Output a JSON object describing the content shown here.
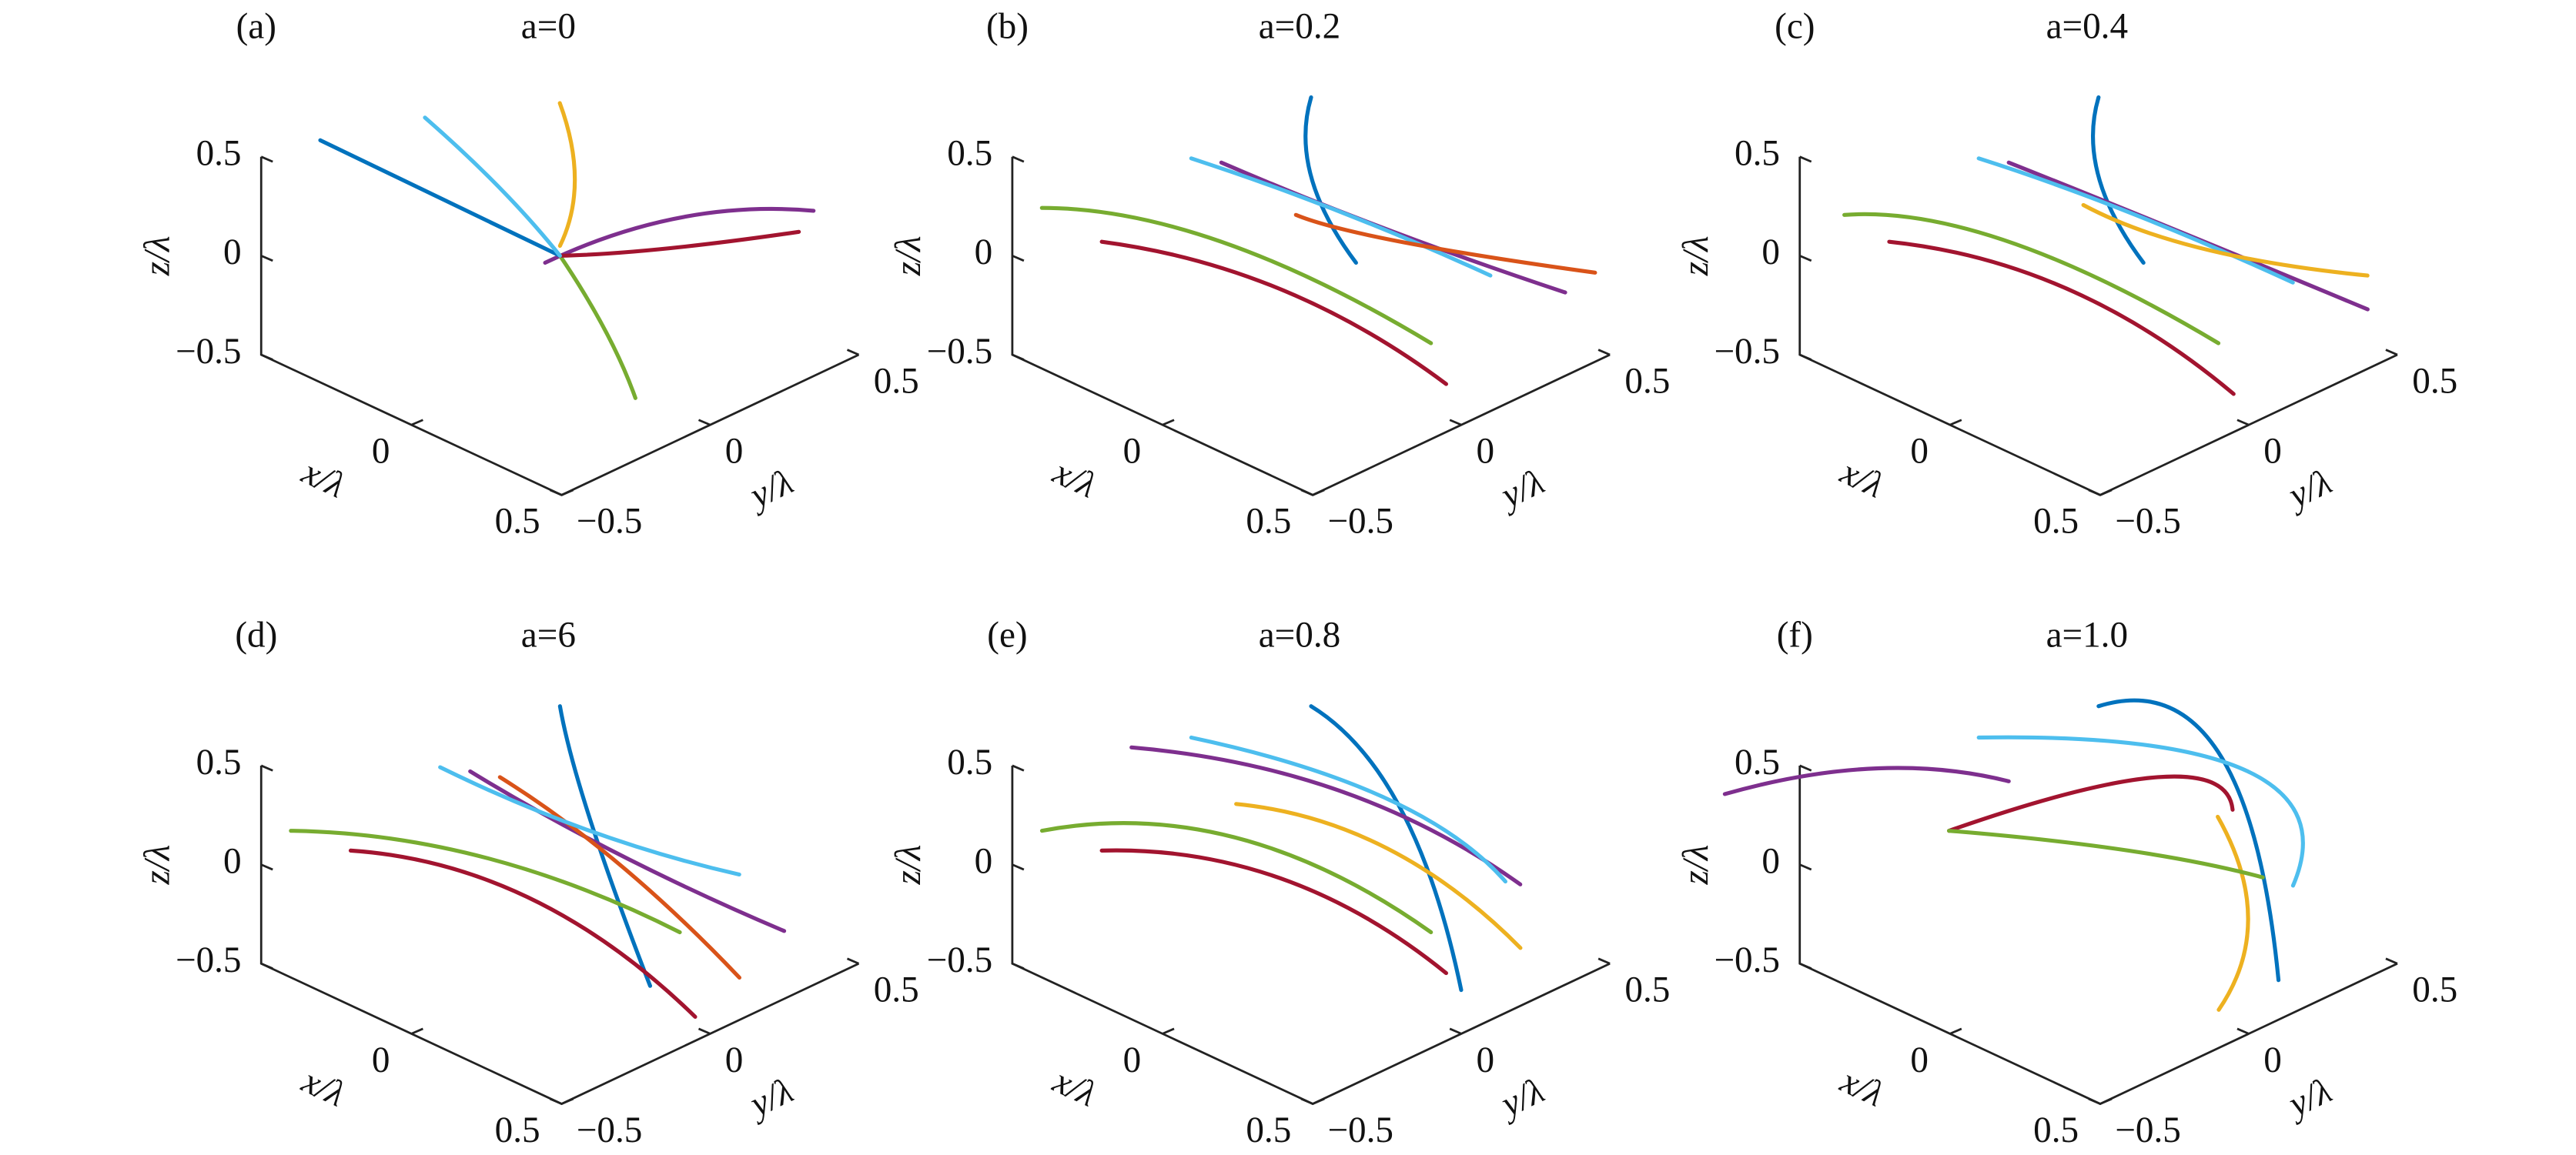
{
  "chart_data": [
    {
      "type": "line3d",
      "panel_label": "(a)",
      "title": "a=0",
      "xlabel": "x/λ",
      "ylabel": "y/λ",
      "zlabel": "z/λ",
      "xlim": [
        -0.5,
        0.5
      ],
      "ylim": [
        -0.5,
        0.5
      ],
      "zlim": [
        -0.5,
        0.5
      ],
      "xticks": [
        0,
        0.5
      ],
      "yticks": [
        {
          "value": -0.5,
          "label": "−0.5"
        },
        0,
        0.5
      ],
      "zticks": [
        {
          "value": -0.5,
          "label": "−0.5"
        },
        0,
        0.5
      ],
      "series": [
        {
          "color": "#7E2F8E",
          "x": [
            0,
            0.1,
            0.3
          ],
          "y": [
            -0.05,
            0.3,
            0.55
          ],
          "z": [
            0,
            0.05,
            0.05
          ]
        },
        {
          "color": "#0072BD",
          "x": [
            0,
            -0.3,
            -0.6
          ],
          "y": [
            0,
            -0.1,
            -0.2
          ],
          "z": [
            0,
            0.15,
            0.3
          ]
        },
        {
          "color": "#EDB120",
          "x": [
            0,
            0,
            -0.05
          ],
          "y": [
            0,
            0.05,
            0.05
          ],
          "z": [
            0.05,
            0.35,
            0.7
          ]
        },
        {
          "color": "#77AC30",
          "x": [
            0,
            0.2,
            0.35
          ],
          "y": [
            0,
            -0.05,
            -0.1
          ],
          "z": [
            0,
            -0.2,
            -0.4
          ]
        },
        {
          "color": "#A2142F",
          "x": [
            0,
            0.15,
            0.35
          ],
          "y": [
            0,
            0.2,
            0.45
          ],
          "z": [
            0,
            0,
            0.05
          ]
        },
        {
          "color": "#4DBEEE",
          "x": [
            0,
            -0.2,
            -0.4
          ],
          "y": [
            0,
            0,
            -0.05
          ],
          "z": [
            0,
            0.2,
            0.45
          ]
        }
      ]
    },
    {
      "type": "line3d",
      "panel_label": "(b)",
      "title": "a=0.2",
      "xlabel": "x/λ",
      "ylabel": "y/λ",
      "zlabel": "z/λ",
      "xlim": [
        -0.5,
        0.5
      ],
      "ylim": [
        -0.5,
        0.5
      ],
      "zlim": [
        -0.5,
        0.5
      ],
      "xticks": [
        0,
        0.5
      ],
      "yticks": [
        {
          "value": -0.5,
          "label": "−0.5"
        },
        0,
        0.5
      ],
      "zticks": [
        {
          "value": -0.5,
          "label": "−0.5"
        },
        0,
        0.5
      ],
      "series": [
        {
          "color": "#0072BD",
          "x": [
            0,
            0,
            0.1
          ],
          "y": [
            0,
            0,
            0.05
          ],
          "z": [
            0.8,
            0.4,
            0
          ]
        },
        {
          "color": "#77AC30",
          "x": [
            -0.55,
            -0.2,
            0.3
          ],
          "y": [
            -0.35,
            -0.1,
            0.1
          ],
          "z": [
            0.1,
            0,
            -0.3
          ]
        },
        {
          "color": "#7E2F8E",
          "x": [
            -0.2,
            0.1,
            0.45
          ],
          "y": [
            -0.1,
            0.15,
            0.4
          ],
          "z": [
            0.4,
            0.1,
            -0.15
          ]
        },
        {
          "color": "#A2142F",
          "x": [
            -0.4,
            0,
            0.4
          ],
          "y": [
            -0.3,
            -0.1,
            0.05
          ],
          "z": [
            0,
            -0.1,
            -0.4
          ]
        },
        {
          "color": "#4DBEEE",
          "x": [
            -0.3,
            0,
            0.3
          ],
          "y": [
            -0.1,
            0.1,
            0.3
          ],
          "z": [
            0.35,
            0.15,
            -0.1
          ]
        },
        {
          "color": "#D95319",
          "x": [
            -0.1,
            0.1,
            0.5
          ],
          "y": [
            0.05,
            0.2,
            0.45
          ],
          "z": [
            0.1,
            0,
            -0.05
          ]
        }
      ]
    },
    {
      "type": "line3d",
      "panel_label": "(c)",
      "title": "a=0.4",
      "xlabel": "x/λ",
      "ylabel": "y/λ",
      "zlabel": "z/λ",
      "xlim": [
        -0.5,
        0.5
      ],
      "ylim": [
        -0.5,
        0.5
      ],
      "zlim": [
        -0.5,
        0.5
      ],
      "xticks": [
        0,
        0.5
      ],
      "yticks": [
        {
          "value": -0.5,
          "label": "−0.5"
        },
        0,
        0.5
      ],
      "zticks": [
        {
          "value": -0.5,
          "label": "−0.5"
        },
        0,
        0.5
      ],
      "series": [
        {
          "color": "#0072BD",
          "x": [
            0,
            0,
            0.1
          ],
          "y": [
            0,
            0,
            0.05
          ],
          "z": [
            0.8,
            0.4,
            0
          ]
        },
        {
          "color": "#77AC30",
          "x": [
            -0.5,
            -0.2,
            0.3
          ],
          "y": [
            -0.35,
            -0.1,
            0.1
          ],
          "z": [
            0.1,
            0,
            -0.3
          ]
        },
        {
          "color": "#7E2F8E",
          "x": [
            -0.2,
            0.1,
            0.5
          ],
          "y": [
            -0.1,
            0.15,
            0.4
          ],
          "z": [
            0.4,
            0.1,
            -0.2
          ]
        },
        {
          "color": "#A2142F",
          "x": [
            -0.4,
            0,
            0.4
          ],
          "y": [
            -0.3,
            -0.1,
            0.05
          ],
          "z": [
            0,
            -0.1,
            -0.45
          ]
        },
        {
          "color": "#4DBEEE",
          "x": [
            -0.3,
            0,
            0.35
          ],
          "y": [
            -0.1,
            0.1,
            0.3
          ],
          "z": [
            0.35,
            0.15,
            -0.1
          ]
        },
        {
          "color": "#EDB120",
          "x": [
            -0.1,
            0.15,
            0.45
          ],
          "y": [
            0.05,
            0.2,
            0.45
          ],
          "z": [
            0.15,
            0,
            -0.1
          ]
        }
      ]
    },
    {
      "type": "line3d",
      "panel_label": "(d)",
      "title": "a=6",
      "xlabel": "x/λ",
      "ylabel": "y/λ",
      "zlabel": "z/λ",
      "xlim": [
        -0.5,
        0.5
      ],
      "ylim": [
        -0.5,
        0.5
      ],
      "zlim": [
        -0.5,
        0.5
      ],
      "xticks": [
        0,
        0.5
      ],
      "yticks": [
        {
          "value": -0.5,
          "label": "−0.5"
        },
        0,
        0.5
      ],
      "zticks": [
        {
          "value": -0.5,
          "label": "−0.5"
        },
        0,
        0.5
      ],
      "series": [
        {
          "color": "#0072BD",
          "x": [
            0,
            0.1,
            0.3
          ],
          "y": [
            0,
            0,
            0
          ],
          "z": [
            0.8,
            0.3,
            -0.4
          ]
        },
        {
          "color": "#77AC30",
          "x": [
            -0.5,
            -0.15,
            0.3
          ],
          "y": [
            -0.4,
            -0.1,
            0.1
          ],
          "z": [
            0.1,
            0,
            -0.2
          ]
        },
        {
          "color": "#7E2F8E",
          "x": [
            -0.2,
            0.1,
            0.4
          ],
          "y": [
            -0.1,
            0.1,
            0.35
          ],
          "z": [
            0.4,
            0.05,
            -0.3
          ]
        },
        {
          "color": "#A2142F",
          "x": [
            -0.4,
            0,
            0.45
          ],
          "y": [
            -0.3,
            -0.1,
            0
          ],
          "z": [
            0,
            -0.1,
            -0.45
          ]
        },
        {
          "color": "#D95319",
          "x": [
            -0.2,
            0.1,
            0.35
          ],
          "y": [
            0,
            0.1,
            0.25
          ],
          "z": [
            0.3,
            0,
            -0.5
          ]
        },
        {
          "color": "#4DBEEE",
          "x": [
            -0.3,
            0,
            0.3
          ],
          "y": [
            -0.1,
            0.1,
            0.3
          ],
          "z": [
            0.35,
            0.1,
            -0.05
          ]
        }
      ]
    },
    {
      "type": "line3d",
      "panel_label": "(e)",
      "title": "a=0.8",
      "xlabel": "x/λ",
      "ylabel": "y/λ",
      "zlabel": "z/λ",
      "xlim": [
        -0.5,
        0.5
      ],
      "ylim": [
        -0.5,
        0.5
      ],
      "zlim": [
        -0.5,
        0.5
      ],
      "xticks": [
        0,
        0.5
      ],
      "yticks": [
        {
          "value": -0.5,
          "label": "−0.5"
        },
        0,
        0.5
      ],
      "zticks": [
        {
          "value": -0.5,
          "label": "−0.5"
        },
        0,
        0.5
      ],
      "series": [
        {
          "color": "#0072BD",
          "x": [
            0,
            0.2,
            0.45
          ],
          "y": [
            0,
            0.1,
            0.05
          ],
          "z": [
            0.8,
            0.35,
            -0.35
          ]
        },
        {
          "color": "#77AC30",
          "x": [
            -0.5,
            -0.15,
            0.3
          ],
          "y": [
            -0.4,
            -0.1,
            0.1
          ],
          "z": [
            0.1,
            0.1,
            -0.2
          ]
        },
        {
          "color": "#7E2F8E",
          "x": [
            -0.4,
            0,
            0.35
          ],
          "y": [
            -0.2,
            0.1,
            0.35
          ],
          "z": [
            0.45,
            0.3,
            -0.1
          ]
        },
        {
          "color": "#A2142F",
          "x": [
            -0.4,
            0,
            0.4
          ],
          "y": [
            -0.3,
            -0.1,
            0.05
          ],
          "z": [
            0,
            0,
            -0.3
          ]
        },
        {
          "color": "#EDB120",
          "x": [
            -0.2,
            0.1,
            0.4
          ],
          "y": [
            -0.05,
            0.15,
            0.3
          ],
          "z": [
            0.2,
            0.05,
            -0.35
          ]
        },
        {
          "color": "#4DBEEE",
          "x": [
            -0.3,
            0.1,
            0.35
          ],
          "y": [
            -0.1,
            0.15,
            0.3
          ],
          "z": [
            0.5,
            0.3,
            -0.05
          ]
        }
      ]
    },
    {
      "type": "line3d",
      "panel_label": "(f)",
      "title": "a=1.0",
      "xlabel": "x/λ",
      "ylabel": "y/λ",
      "zlabel": "z/λ",
      "xlim": [
        -0.5,
        0.5
      ],
      "ylim": [
        -0.5,
        0.5
      ],
      "zlim": [
        -0.5,
        0.5
      ],
      "xticks": [
        0,
        0.5
      ],
      "yticks": [
        {
          "value": -0.5,
          "label": "−0.5"
        },
        0,
        0.5
      ],
      "zticks": [
        {
          "value": -0.5,
          "label": "−0.5"
        },
        0,
        0.5
      ],
      "series": [
        {
          "color": "#0072BD",
          "x": [
            0,
            0.15,
            0.5
          ],
          "y": [
            0,
            0.25,
            0.1
          ],
          "z": [
            0.8,
            0.5,
            -0.3
          ]
        },
        {
          "color": "#7E2F8E",
          "x": [
            -0.7,
            -0.4,
            -0.2
          ],
          "y": [
            -0.55,
            -0.35,
            -0.1
          ],
          "z": [
            0.25,
            0.45,
            0.35
          ]
        },
        {
          "color": "#A2142F",
          "x": [
            -0.3,
            0,
            0.1
          ],
          "y": [
            -0.2,
            0.2,
            0.35
          ],
          "z": [
            0.1,
            0.3,
            0.1
          ]
        },
        {
          "color": "#4DBEEE",
          "x": [
            -0.3,
            0.2,
            0.4
          ],
          "y": [
            -0.1,
            0.3,
            0.25
          ],
          "z": [
            0.5,
            0.4,
            0
          ]
        },
        {
          "color": "#EDB120",
          "x": [
            0.1,
            0.3,
            0.4
          ],
          "y": [
            0.3,
            0.2,
            0
          ],
          "z": [
            0.1,
            -0.2,
            -0.45
          ]
        },
        {
          "color": "#77AC30",
          "x": [
            -0.3,
            0,
            0.25
          ],
          "y": [
            -0.2,
            0.1,
            0.3
          ],
          "z": [
            0.1,
            0,
            -0.1
          ]
        }
      ]
    }
  ]
}
